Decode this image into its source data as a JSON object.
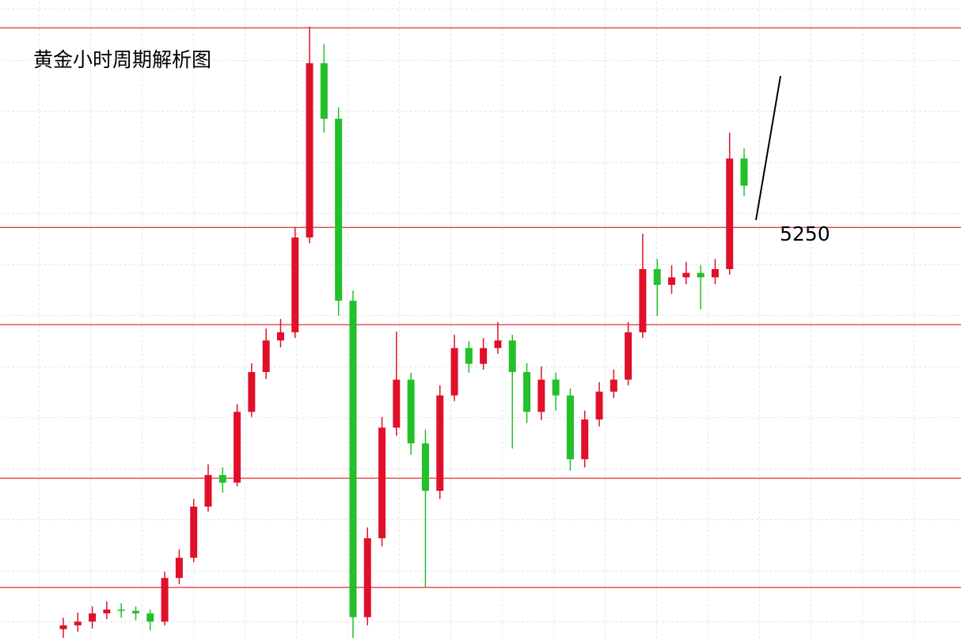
{
  "chart_data": {
    "type": "candlestick",
    "title": "黄金小时周期解析图",
    "ylim": [
      4600,
      5610
    ],
    "levels": [
      5566,
      5250,
      5096,
      4853,
      4680
    ],
    "level_color": "#d40000",
    "up_color": "#e0102a",
    "down_color": "#22c02a",
    "open": [
      4614,
      4620,
      4626,
      4639,
      4645,
      4643,
      4639,
      4626,
      4695,
      4727,
      4808,
      4858,
      4846,
      4958,
      5021,
      5071,
      5084,
      5234,
      5510,
      5422,
      5134,
      4633,
      4758,
      4933,
      5009,
      4908,
      4833,
      4984,
      5059,
      5034,
      5059,
      5071,
      5021,
      4958,
      5009,
      4984,
      4883,
      4946,
      4990,
      5009,
      5084,
      5184,
      5159,
      5171,
      5178,
      5171,
      5184,
      5359
    ],
    "high": [
      4632,
      4640,
      4650,
      4658,
      4655,
      4650,
      4645,
      4705,
      4740,
      4820,
      4875,
      4870,
      4970,
      5035,
      5090,
      5105,
      5250,
      5568,
      5540,
      5440,
      5150,
      4775,
      4950,
      5085,
      5020,
      4930,
      5000,
      5080,
      5070,
      5075,
      5100,
      5080,
      5035,
      5030,
      5020,
      4995,
      4960,
      5005,
      5025,
      5100,
      5240,
      5200,
      5190,
      5195,
      5190,
      5200,
      5400,
      5375
    ],
    "low": [
      4600,
      4610,
      4615,
      4630,
      4632,
      4628,
      4612,
      4620,
      4685,
      4720,
      4800,
      4830,
      4840,
      4950,
      5010,
      5060,
      5075,
      5225,
      5400,
      5110,
      4600,
      4620,
      4745,
      4920,
      4890,
      4680,
      4820,
      4975,
      5020,
      5025,
      5050,
      4900,
      4940,
      4945,
      4960,
      4865,
      4870,
      4935,
      4980,
      5000,
      5075,
      5110,
      5145,
      5160,
      5120,
      5160,
      5175,
      5300
    ],
    "close": [
      4620,
      4626,
      4639,
      4645,
      4643,
      4639,
      4626,
      4695,
      4727,
      4808,
      4858,
      4846,
      4958,
      5021,
      5071,
      5084,
      5234,
      5510,
      5422,
      5134,
      4633,
      4758,
      4933,
      5009,
      4908,
      4833,
      4984,
      5059,
      5034,
      5059,
      5071,
      5021,
      4958,
      5009,
      4984,
      4883,
      4946,
      4990,
      5009,
      5084,
      5184,
      5159,
      5171,
      5178,
      5171,
      5184,
      5359,
      5316
    ]
  }
}
